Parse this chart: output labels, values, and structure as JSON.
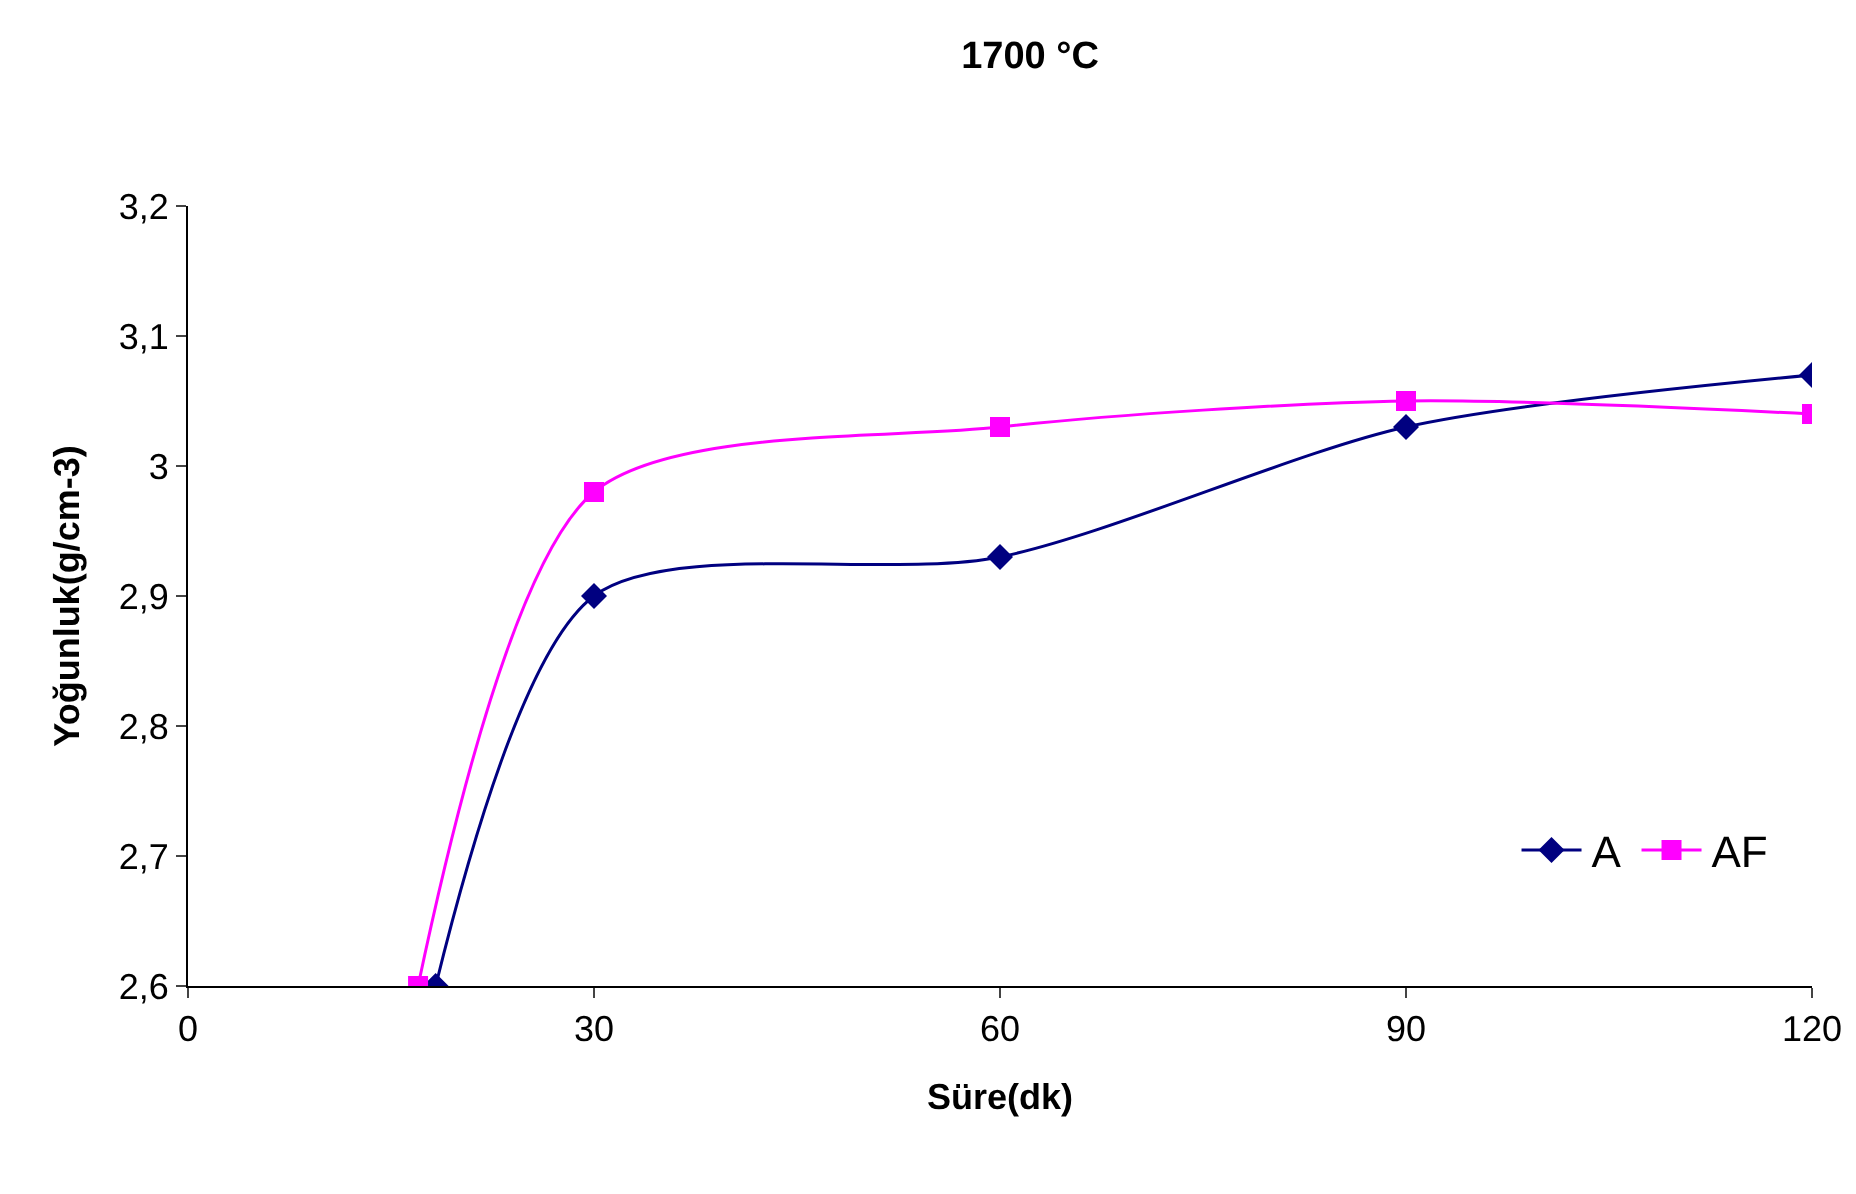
{
  "chart_data": {
    "type": "line",
    "title": "1700 °C",
    "xlabel": "Süre(dk)",
    "ylabel": "Yoğunluk(g/cm-3)",
    "series": [
      {
        "name": "A",
        "color": "#000080",
        "marker": "diamond",
        "x": [
          18.3,
          30,
          60,
          90,
          120
        ],
        "values": [
          2.6,
          2.9,
          2.93,
          3.03,
          3.07
        ]
      },
      {
        "name": "AF",
        "color": "#ff00ff",
        "marker": "square",
        "x": [
          17,
          30,
          60,
          90,
          120
        ],
        "values": [
          2.6,
          2.98,
          3.03,
          3.05,
          3.04
        ]
      }
    ],
    "xlim": [
      0,
      120
    ],
    "xticks": [
      0,
      30,
      60,
      90,
      120
    ],
    "ylim": [
      2.6,
      3.2
    ],
    "yticks": [
      {
        "value": 2.6,
        "label": "2,6"
      },
      {
        "value": 2.7,
        "label": "2,7"
      },
      {
        "value": 2.8,
        "label": "2,8"
      },
      {
        "value": 2.9,
        "label": "2,9"
      },
      3,
      {
        "value": 3.1,
        "label": "3,1"
      },
      {
        "value": 3.2,
        "label": "3,2"
      }
    ],
    "grid": false,
    "legend": "bottom right",
    "line_style": "solid"
  }
}
